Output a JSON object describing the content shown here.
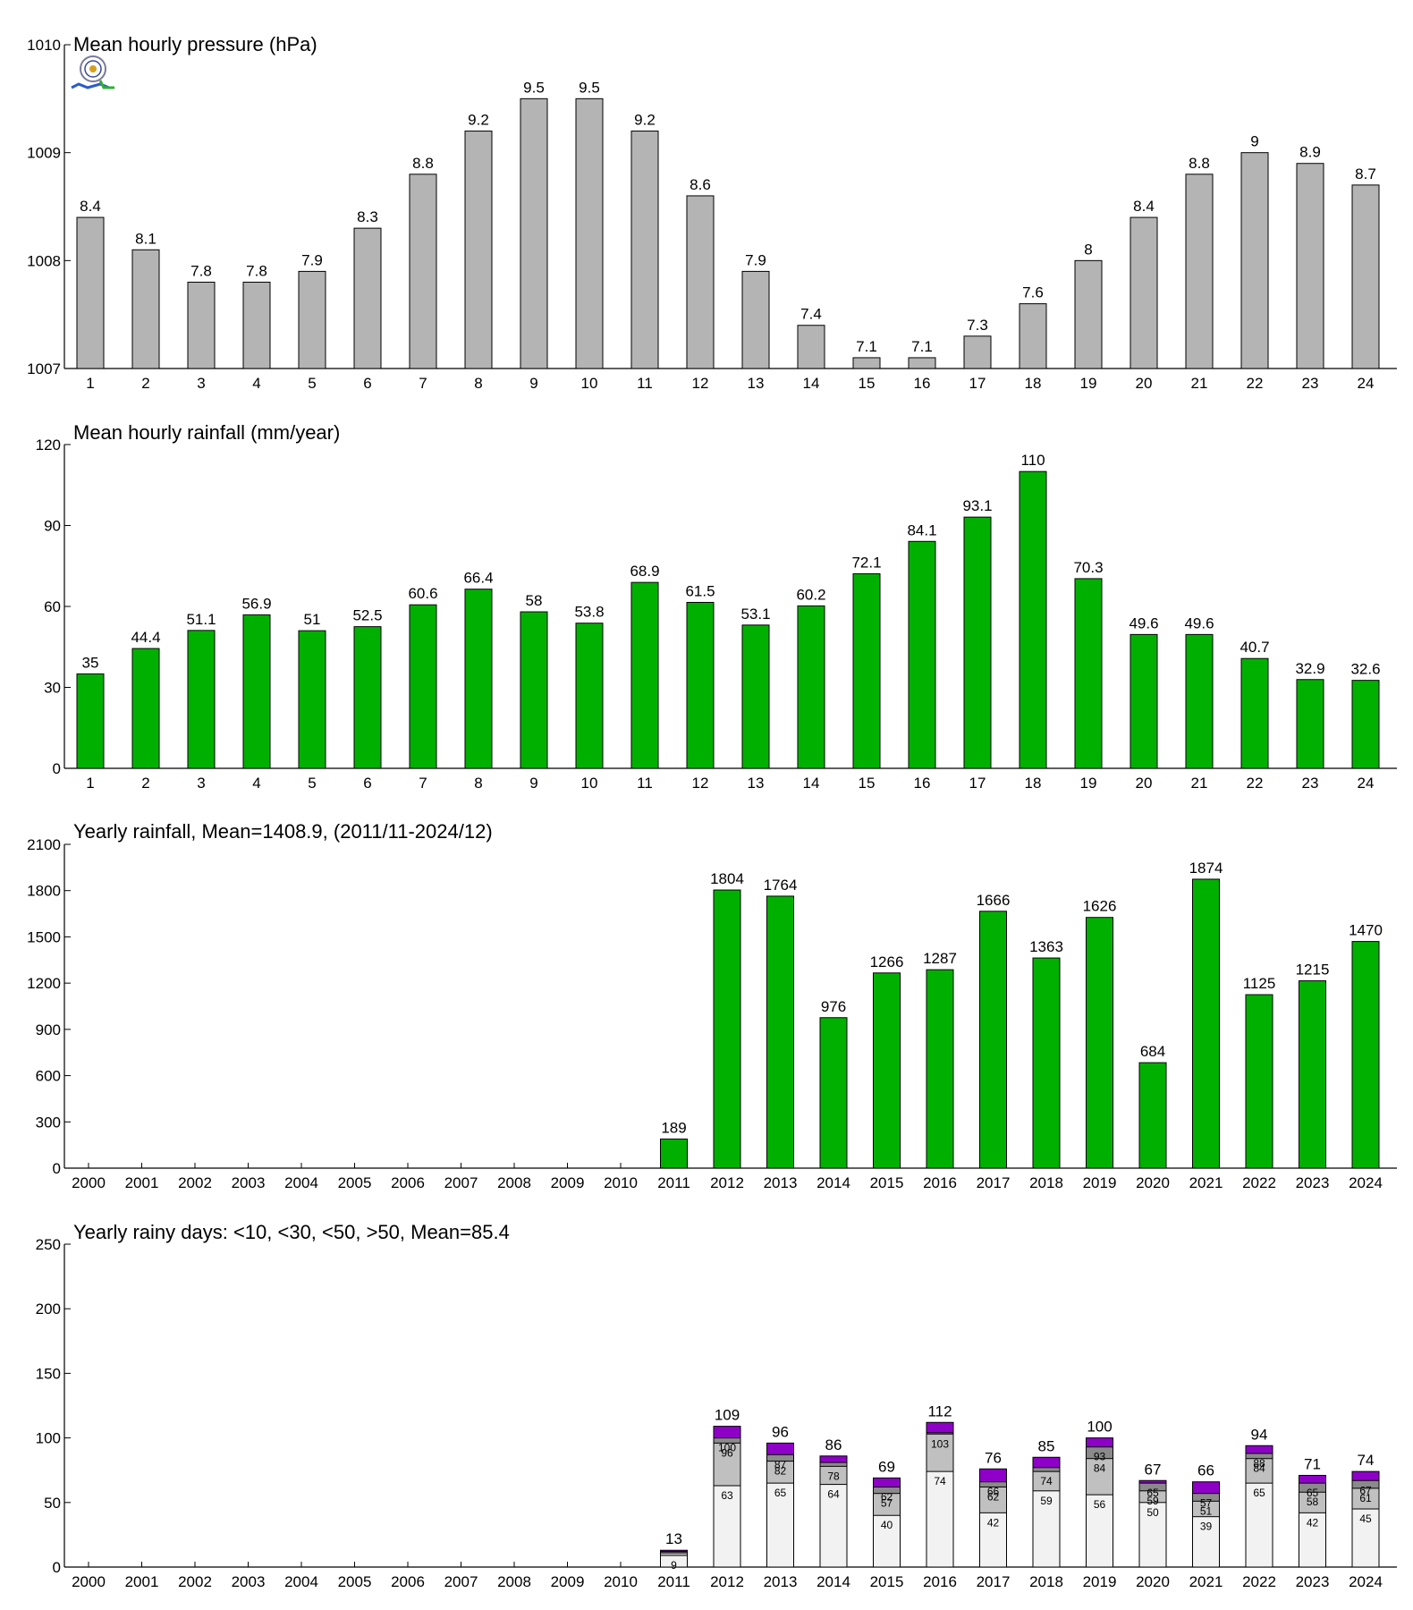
{
  "colors": {
    "gray": "#b4b4b4",
    "green": "#00b000",
    "purple": "#8e00c8",
    "dark": "#8a8a8a",
    "mid": "#c0c0c0",
    "light": "#f2f2f2"
  },
  "chart_data": [
    {
      "type": "bar",
      "title": "Mean hourly pressure (hPa)",
      "categories": [
        "1",
        "2",
        "3",
        "4",
        "5",
        "6",
        "7",
        "8",
        "9",
        "10",
        "11",
        "12",
        "13",
        "14",
        "15",
        "16",
        "17",
        "18",
        "19",
        "20",
        "21",
        "22",
        "23",
        "24"
      ],
      "values": [
        1008.4,
        1008.1,
        1007.8,
        1007.8,
        1007.9,
        1008.3,
        1008.8,
        1009.2,
        1009.5,
        1009.5,
        1009.2,
        1008.6,
        1007.9,
        1007.4,
        1007.1,
        1007.1,
        1007.3,
        1007.6,
        1008.0,
        1008.4,
        1008.8,
        1009.0,
        1008.9,
        1008.7
      ],
      "labels": [
        "8.4",
        "8.1",
        "7.8",
        "7.8",
        "7.9",
        "8.3",
        "8.8",
        "9.2",
        "9.5",
        "9.5",
        "9.2",
        "8.6",
        "7.9",
        "7.4",
        "7.1",
        "7.1",
        "7.3",
        "7.6",
        "8",
        "8.4",
        "8.8",
        "9",
        "8.9",
        "8.7"
      ],
      "ylim": [
        1007,
        1010
      ],
      "yticks": [
        "1007",
        "1008",
        "1009",
        "1010"
      ],
      "color": "gray"
    },
    {
      "type": "bar",
      "title": "Mean hourly rainfall (mm/year)",
      "categories": [
        "1",
        "2",
        "3",
        "4",
        "5",
        "6",
        "7",
        "8",
        "9",
        "10",
        "11",
        "12",
        "13",
        "14",
        "15",
        "16",
        "17",
        "18",
        "19",
        "20",
        "21",
        "22",
        "23",
        "24"
      ],
      "values": [
        35,
        44.4,
        51.1,
        56.9,
        51,
        52.5,
        60.6,
        66.4,
        58,
        53.8,
        68.9,
        61.5,
        53.1,
        60.2,
        72.1,
        84.1,
        93.1,
        110,
        70.3,
        49.6,
        49.6,
        40.7,
        32.9,
        32.6
      ],
      "labels": [
        "35",
        "44.4",
        "51.1",
        "56.9",
        "51",
        "52.5",
        "60.6",
        "66.4",
        "58",
        "53.8",
        "68.9",
        "61.5",
        "53.1",
        "60.2",
        "72.1",
        "84.1",
        "93.1",
        "110",
        "70.3",
        "49.6",
        "49.6",
        "40.7",
        "32.9",
        "32.6"
      ],
      "ylim": [
        0,
        120
      ],
      "yticks": [
        "0",
        "30",
        "60",
        "90",
        "120"
      ],
      "color": "green"
    },
    {
      "type": "bar",
      "title": "Yearly rainfall, Mean=1408.9, (2011/11-2024/12)",
      "categories": [
        "2000",
        "2001",
        "2002",
        "2003",
        "2004",
        "2005",
        "2006",
        "2007",
        "2008",
        "2009",
        "2010",
        "2011",
        "2012",
        "2013",
        "2014",
        "2015",
        "2016",
        "2017",
        "2018",
        "2019",
        "2020",
        "2021",
        "2022",
        "2023",
        "2024"
      ],
      "values": [
        null,
        null,
        null,
        null,
        null,
        null,
        null,
        null,
        null,
        null,
        null,
        189,
        1804,
        1764,
        976,
        1266,
        1287,
        1666,
        1363,
        1626,
        684,
        1874,
        1125,
        1215,
        1470
      ],
      "labels": [
        "",
        "",
        "",
        "",
        "",
        "",
        "",
        "",
        "",
        "",
        "",
        "189",
        "1804",
        "1764",
        "976",
        "1266",
        "1287",
        "1666",
        "1363",
        "1626",
        "684",
        "1874",
        "1125",
        "1215",
        "1470"
      ],
      "ylim": [
        0,
        2100
      ],
      "yticks": [
        "0",
        "300",
        "600",
        "900",
        "1200",
        "1500",
        "1800",
        "2100"
      ],
      "color": "green"
    },
    {
      "type": "bar",
      "title": "Yearly rainy days: <10, <30, <50, >50, Mean=85.4",
      "categories": [
        "2000",
        "2001",
        "2002",
        "2003",
        "2004",
        "2005",
        "2006",
        "2007",
        "2008",
        "2009",
        "2010",
        "2011",
        "2012",
        "2013",
        "2014",
        "2015",
        "2016",
        "2017",
        "2018",
        "2019",
        "2020",
        "2021",
        "2022",
        "2023",
        "2024"
      ],
      "series": [
        {
          "values": [
            null,
            null,
            null,
            null,
            null,
            null,
            null,
            null,
            null,
            null,
            null,
            9,
            63,
            65,
            64,
            40,
            74,
            42,
            59,
            56,
            50,
            39,
            65,
            42,
            45
          ],
          "labels": [
            "",
            "",
            "",
            "",
            "",
            "",
            "",
            "",
            "",
            "",
            "",
            "9",
            "63",
            "65",
            "64",
            "40",
            "74",
            "42",
            "59",
            "56",
            "50",
            "39",
            "65",
            "42",
            "45"
          ],
          "color": "light"
        },
        {
          "values": [
            null,
            null,
            null,
            null,
            null,
            null,
            null,
            null,
            null,
            null,
            null,
            11,
            96,
            82,
            78,
            57,
            103,
            62,
            74,
            84,
            59,
            51,
            84,
            58,
            61
          ],
          "labels": [
            "",
            "",
            "",
            "",
            "",
            "",
            "",
            "",
            "",
            "",
            "",
            "",
            "96",
            "82",
            "78",
            "57",
            "103",
            "62",
            "74",
            "84",
            "59",
            "51",
            "84",
            "58",
            "61"
          ],
          "color": "mid"
        },
        {
          "values": [
            null,
            null,
            null,
            null,
            null,
            null,
            null,
            null,
            null,
            null,
            null,
            12,
            100,
            87,
            81,
            62,
            104,
            66,
            77,
            93,
            65,
            57,
            88,
            65,
            67
          ],
          "labels": [
            "",
            "",
            "",
            "",
            "",
            "",
            "",
            "",
            "",
            "",
            "",
            "",
            "100",
            "87",
            "",
            "62",
            "",
            "66",
            "",
            "93",
            "65",
            "57",
            "88",
            "65",
            "67"
          ],
          "color": "dark"
        },
        {
          "values": [
            null,
            null,
            null,
            null,
            null,
            null,
            null,
            null,
            null,
            null,
            null,
            13,
            109,
            96,
            86,
            69,
            112,
            76,
            85,
            100,
            67,
            66,
            94,
            71,
            74
          ],
          "labels": [
            "",
            "",
            "",
            "",
            "",
            "",
            "",
            "",
            "",
            "",
            "",
            "13",
            "109",
            "96",
            "86",
            "69",
            "112",
            "76",
            "85",
            "100",
            "67",
            "66",
            "94",
            "71",
            "74"
          ],
          "color": "purple"
        }
      ],
      "ylim": [
        0,
        250
      ],
      "yticks": [
        "0",
        "50",
        "100",
        "150",
        "200",
        "250"
      ]
    }
  ]
}
